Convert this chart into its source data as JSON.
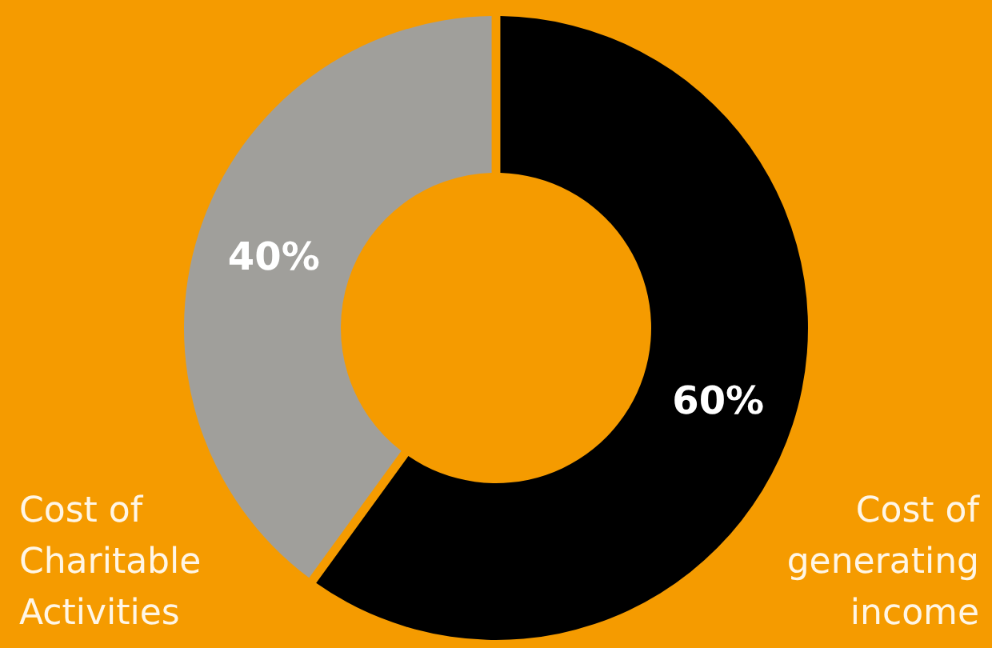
{
  "chart_data": {
    "type": "donut",
    "categories": [
      "Cost of generating income",
      "Cost of Charitable Activities"
    ],
    "values": [
      60,
      40
    ],
    "colors": [
      "#000000",
      "#a09f9b"
    ],
    "value_labels": [
      "60%",
      "40%"
    ]
  }
}
